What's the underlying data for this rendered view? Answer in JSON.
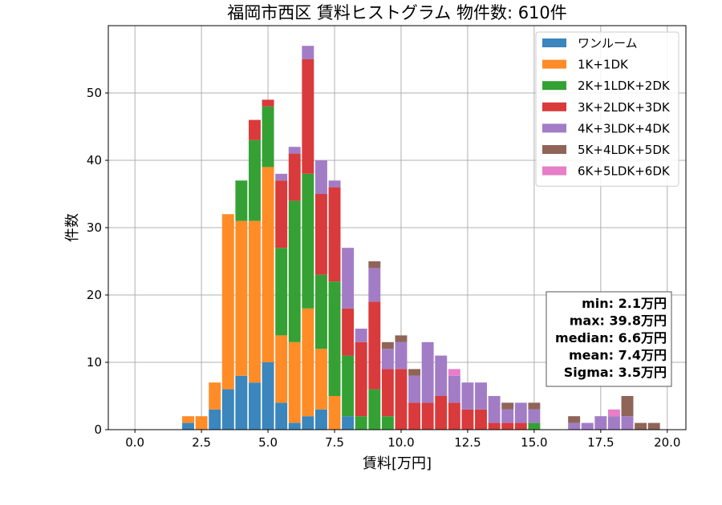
{
  "chart_data": {
    "type": "bar",
    "stacked": true,
    "title": "福岡市西区 賃料ヒストグラム 物件数: 610件",
    "xlabel": "賃料[万円]",
    "ylabel": "件数",
    "xlim": [
      -1.0,
      20.7
    ],
    "ylim": [
      0,
      60
    ],
    "xticks": [
      "0.0",
      "2.5",
      "5.0",
      "7.5",
      "10.0",
      "12.5",
      "15.0",
      "17.5",
      "20.0"
    ],
    "xtick_values": [
      0,
      2.5,
      5,
      7.5,
      10,
      12.5,
      15,
      17.5,
      20
    ],
    "yticks": [
      0,
      10,
      20,
      30,
      40,
      50
    ],
    "grid": true,
    "legend_position": "top-right",
    "bin_width": 0.5,
    "x": [
      2.0,
      2.5,
      3.0,
      3.5,
      4.0,
      4.5,
      5.0,
      5.5,
      6.0,
      6.5,
      7.0,
      7.5,
      8.0,
      8.5,
      9.0,
      9.5,
      10.0,
      10.5,
      11.0,
      11.5,
      12.0,
      12.5,
      13.0,
      13.5,
      14.0,
      14.5,
      15.0,
      16.5,
      17.0,
      17.5,
      18.0,
      18.5,
      19.0,
      19.5
    ],
    "series": [
      {
        "name": "ワンルーム",
        "color": "#3b86bd",
        "values": [
          1,
          0,
          3,
          6,
          8,
          7,
          10,
          4,
          1,
          2,
          3,
          0,
          2,
          0,
          0,
          0,
          0,
          0,
          0,
          0,
          0,
          0,
          0,
          0,
          0,
          0,
          0,
          0,
          0,
          0,
          0,
          0,
          0,
          0
        ]
      },
      {
        "name": "1K+1DK",
        "color": "#ff8c27",
        "values": [
          1,
          2,
          4,
          26,
          23,
          24,
          29,
          10,
          12,
          16,
          9,
          5,
          0,
          0,
          0,
          0,
          0,
          0,
          0,
          0,
          0,
          0,
          0,
          0,
          0,
          0,
          0,
          0,
          0,
          0,
          0,
          0,
          0,
          0
        ]
      },
      {
        "name": "2K+1LDK+2DK",
        "color": "#35a135",
        "values": [
          0,
          0,
          0,
          0,
          6,
          12,
          9,
          13,
          21,
          20,
          11,
          17,
          9,
          2,
          6,
          2,
          0,
          0,
          0,
          0,
          0,
          0,
          0,
          0,
          0,
          0,
          1,
          0,
          0,
          0,
          0,
          0,
          0,
          0
        ]
      },
      {
        "name": "3K+2LDK+3DK",
        "color": "#d93a3b",
        "values": [
          0,
          0,
          0,
          0,
          0,
          3,
          1,
          10,
          7,
          17,
          12,
          14,
          7,
          11,
          13,
          7,
          9,
          4,
          4,
          5,
          4,
          3,
          3,
          1,
          1,
          1,
          0,
          0,
          0,
          0,
          0,
          0,
          0,
          0
        ]
      },
      {
        "name": "4K+3LDK+4DK",
        "color": "#a27dc6",
        "values": [
          0,
          0,
          0,
          0,
          0,
          0,
          0,
          1,
          1,
          2,
          5,
          1,
          9,
          2,
          5,
          3,
          4,
          4,
          9,
          6,
          4,
          4,
          4,
          4,
          2,
          3,
          2,
          1,
          1,
          2,
          2,
          2,
          0,
          0
        ]
      },
      {
        "name": "5K+4LDK+5DK",
        "color": "#8f6558",
        "values": [
          0,
          0,
          0,
          0,
          0,
          0,
          0,
          0,
          0,
          0,
          0,
          0,
          0,
          0,
          1,
          1,
          1,
          1,
          0,
          0,
          0,
          0,
          0,
          0,
          1,
          0,
          1,
          1,
          0,
          0,
          0,
          3,
          1,
          1
        ]
      },
      {
        "name": "6K+5LDK+6DK",
        "color": "#e67ec8",
        "values": [
          0,
          0,
          0,
          0,
          0,
          0,
          0,
          0,
          0,
          0,
          0,
          0,
          0,
          0,
          0,
          0,
          0,
          0,
          0,
          0,
          1,
          0,
          0,
          0,
          0,
          0,
          0,
          0,
          0,
          0,
          1,
          0,
          0,
          0
        ]
      }
    ],
    "annotation": [
      "min: 2.1万円",
      "max: 39.8万円",
      "median: 6.6万円",
      "mean: 7.4万円",
      "Sigma: 3.5万円"
    ]
  }
}
